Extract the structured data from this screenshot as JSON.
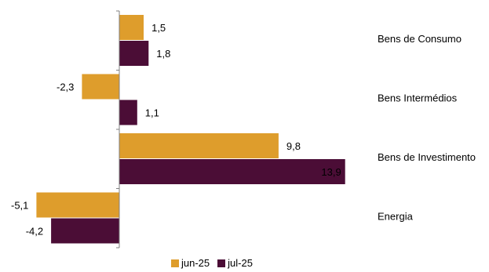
{
  "chart_data": {
    "type": "bar",
    "orientation": "horizontal",
    "categories": [
      "Bens de Consumo",
      "Bens Intermédios",
      "Bens de Investimento",
      "Energia"
    ],
    "series": [
      {
        "name": "jun-25",
        "color": "#DE9D2C",
        "values": [
          1.5,
          -2.3,
          9.8,
          -5.1
        ],
        "labels": [
          "1,5",
          "-2,3",
          "9,8",
          "-5,1"
        ]
      },
      {
        "name": "jul-25",
        "color": "#4B0D36",
        "values": [
          1.8,
          1.1,
          13.9,
          -4.2
        ],
        "labels": [
          "1,8",
          "1,1",
          "13,9",
          "-4,2"
        ]
      }
    ],
    "legend_position": "bottom",
    "grid": false
  }
}
